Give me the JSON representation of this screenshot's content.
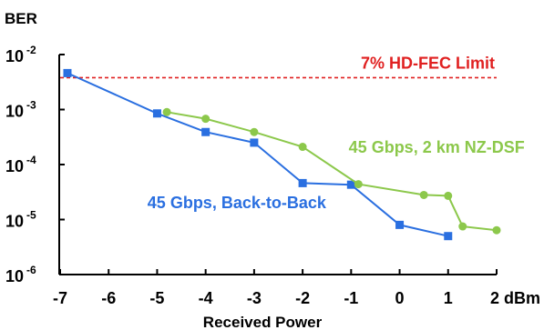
{
  "chart_data": {
    "type": "line",
    "title": "",
    "xlabel": "Received Power",
    "ylabel": "BER",
    "y_scale": "log",
    "xlim": [
      -7,
      2
    ],
    "ylim": [
      1e-06,
      0.01
    ],
    "grid": false,
    "x_ticks": [
      {
        "value": -7,
        "label": "-7"
      },
      {
        "value": -6,
        "label": "-6"
      },
      {
        "value": -5,
        "label": "-5"
      },
      {
        "value": -4,
        "label": "-4"
      },
      {
        "value": -3,
        "label": "-3"
      },
      {
        "value": -2,
        "label": "-2"
      },
      {
        "value": -1,
        "label": "-1"
      },
      {
        "value": 0,
        "label": "0"
      },
      {
        "value": 1,
        "label": "1"
      },
      {
        "value": 2,
        "label": "2 dBm"
      }
    ],
    "y_ticks": [
      {
        "value": 0.01,
        "base": "10",
        "exp": "-2"
      },
      {
        "value": 0.001,
        "base": "10",
        "exp": "-3"
      },
      {
        "value": 0.0001,
        "base": "10",
        "exp": "-4"
      },
      {
        "value": 1e-05,
        "base": "10",
        "exp": "-5"
      },
      {
        "value": 1e-06,
        "base": "10",
        "exp": "-6"
      }
    ],
    "series": [
      {
        "name": "45 Gbps, Back-to-Back",
        "color": "#2a6fe0",
        "marker": "square",
        "label_anchor": [
          -5.2,
          1.6e-05
        ],
        "x": [
          -6.85,
          -5.0,
          -4.0,
          -3.0,
          -2.0,
          -1.0,
          0.0,
          1.0
        ],
        "y": [
          0.0046,
          0.00085,
          0.00039,
          0.00025,
          4.6e-05,
          4.3e-05,
          8e-06,
          5e-06
        ]
      },
      {
        "name": "45 Gbps, 2 km NZ-DSF",
        "color": "#8cc84b",
        "marker": "circle",
        "label_anchor": [
          -1.05,
          0.000165
        ],
        "x": [
          -4.8,
          -4.0,
          -3.0,
          -2.0,
          -0.85,
          0.5,
          1.0,
          1.3,
          2.0
        ],
        "y": [
          0.0009,
          0.00068,
          0.00039,
          0.00021,
          4.4e-05,
          2.8e-05,
          2.7e-05,
          7.5e-06,
          6.4e-06
        ]
      }
    ],
    "annotations": [
      {
        "text": "7% HD-FEC Limit",
        "type": "hline",
        "y": 0.0038,
        "color": "#e02020",
        "style": "dashed"
      }
    ]
  }
}
